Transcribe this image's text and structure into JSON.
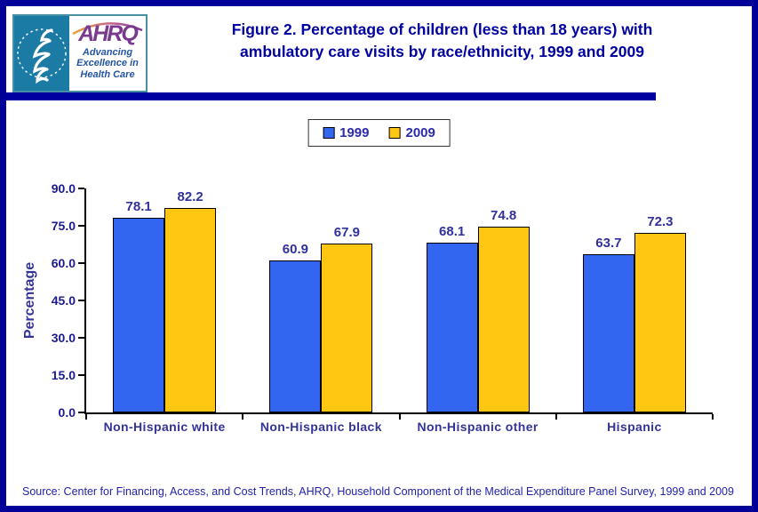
{
  "header": {
    "title": "Figure 2. Percentage of children (less than 18 years) with\nambulatory care visits by race/ethnicity, 1999 and 2009",
    "logo": {
      "acronym": "AHRQ",
      "tagline": "Advancing\nExcellence in\nHealth Care"
    }
  },
  "legend": {
    "items": [
      {
        "label": "1999",
        "color": "#3366F0"
      },
      {
        "label": "2009",
        "color": "#FFC711"
      }
    ]
  },
  "chart_data": {
    "type": "bar",
    "categories": [
      "Non-Hispanic white",
      "Non-Hispanic black",
      "Non-Hispanic other",
      "Hispanic"
    ],
    "series": [
      {
        "name": "1999",
        "color": "#3366F0",
        "values": [
          78.1,
          60.9,
          68.1,
          63.7
        ]
      },
      {
        "name": "2009",
        "color": "#FFC711",
        "values": [
          82.2,
          67.9,
          74.8,
          72.3
        ]
      }
    ],
    "title": "Figure 2. Percentage of children (less than 18 years) with ambulatory care visits by race/ethnicity, 1999 and 2009",
    "xlabel": "",
    "ylabel": "Percentage",
    "ylim": [
      0,
      90
    ],
    "ytick_labels": [
      "0.0",
      "15.0",
      "30.0",
      "45.0",
      "60.0",
      "75.0",
      "90.0"
    ],
    "grid": false,
    "legend_position": "top-center",
    "bar_value_labels": true
  },
  "footer": {
    "source": "Source: Center for Financing, Access, and Cost Trends, AHRQ, Household Component of the Medical Expenditure Panel Survey,  1999 and 2009"
  },
  "colors": {
    "page_border": "#000099",
    "divider": "#0000A0",
    "title_text": "#0000A0",
    "axis_text": "#1B1B8F",
    "category_text": "#333399",
    "value_label_text": "#31319C",
    "source_text": "#2222AA",
    "bar_1999": "#3366F0",
    "bar_2009": "#FFC711"
  }
}
